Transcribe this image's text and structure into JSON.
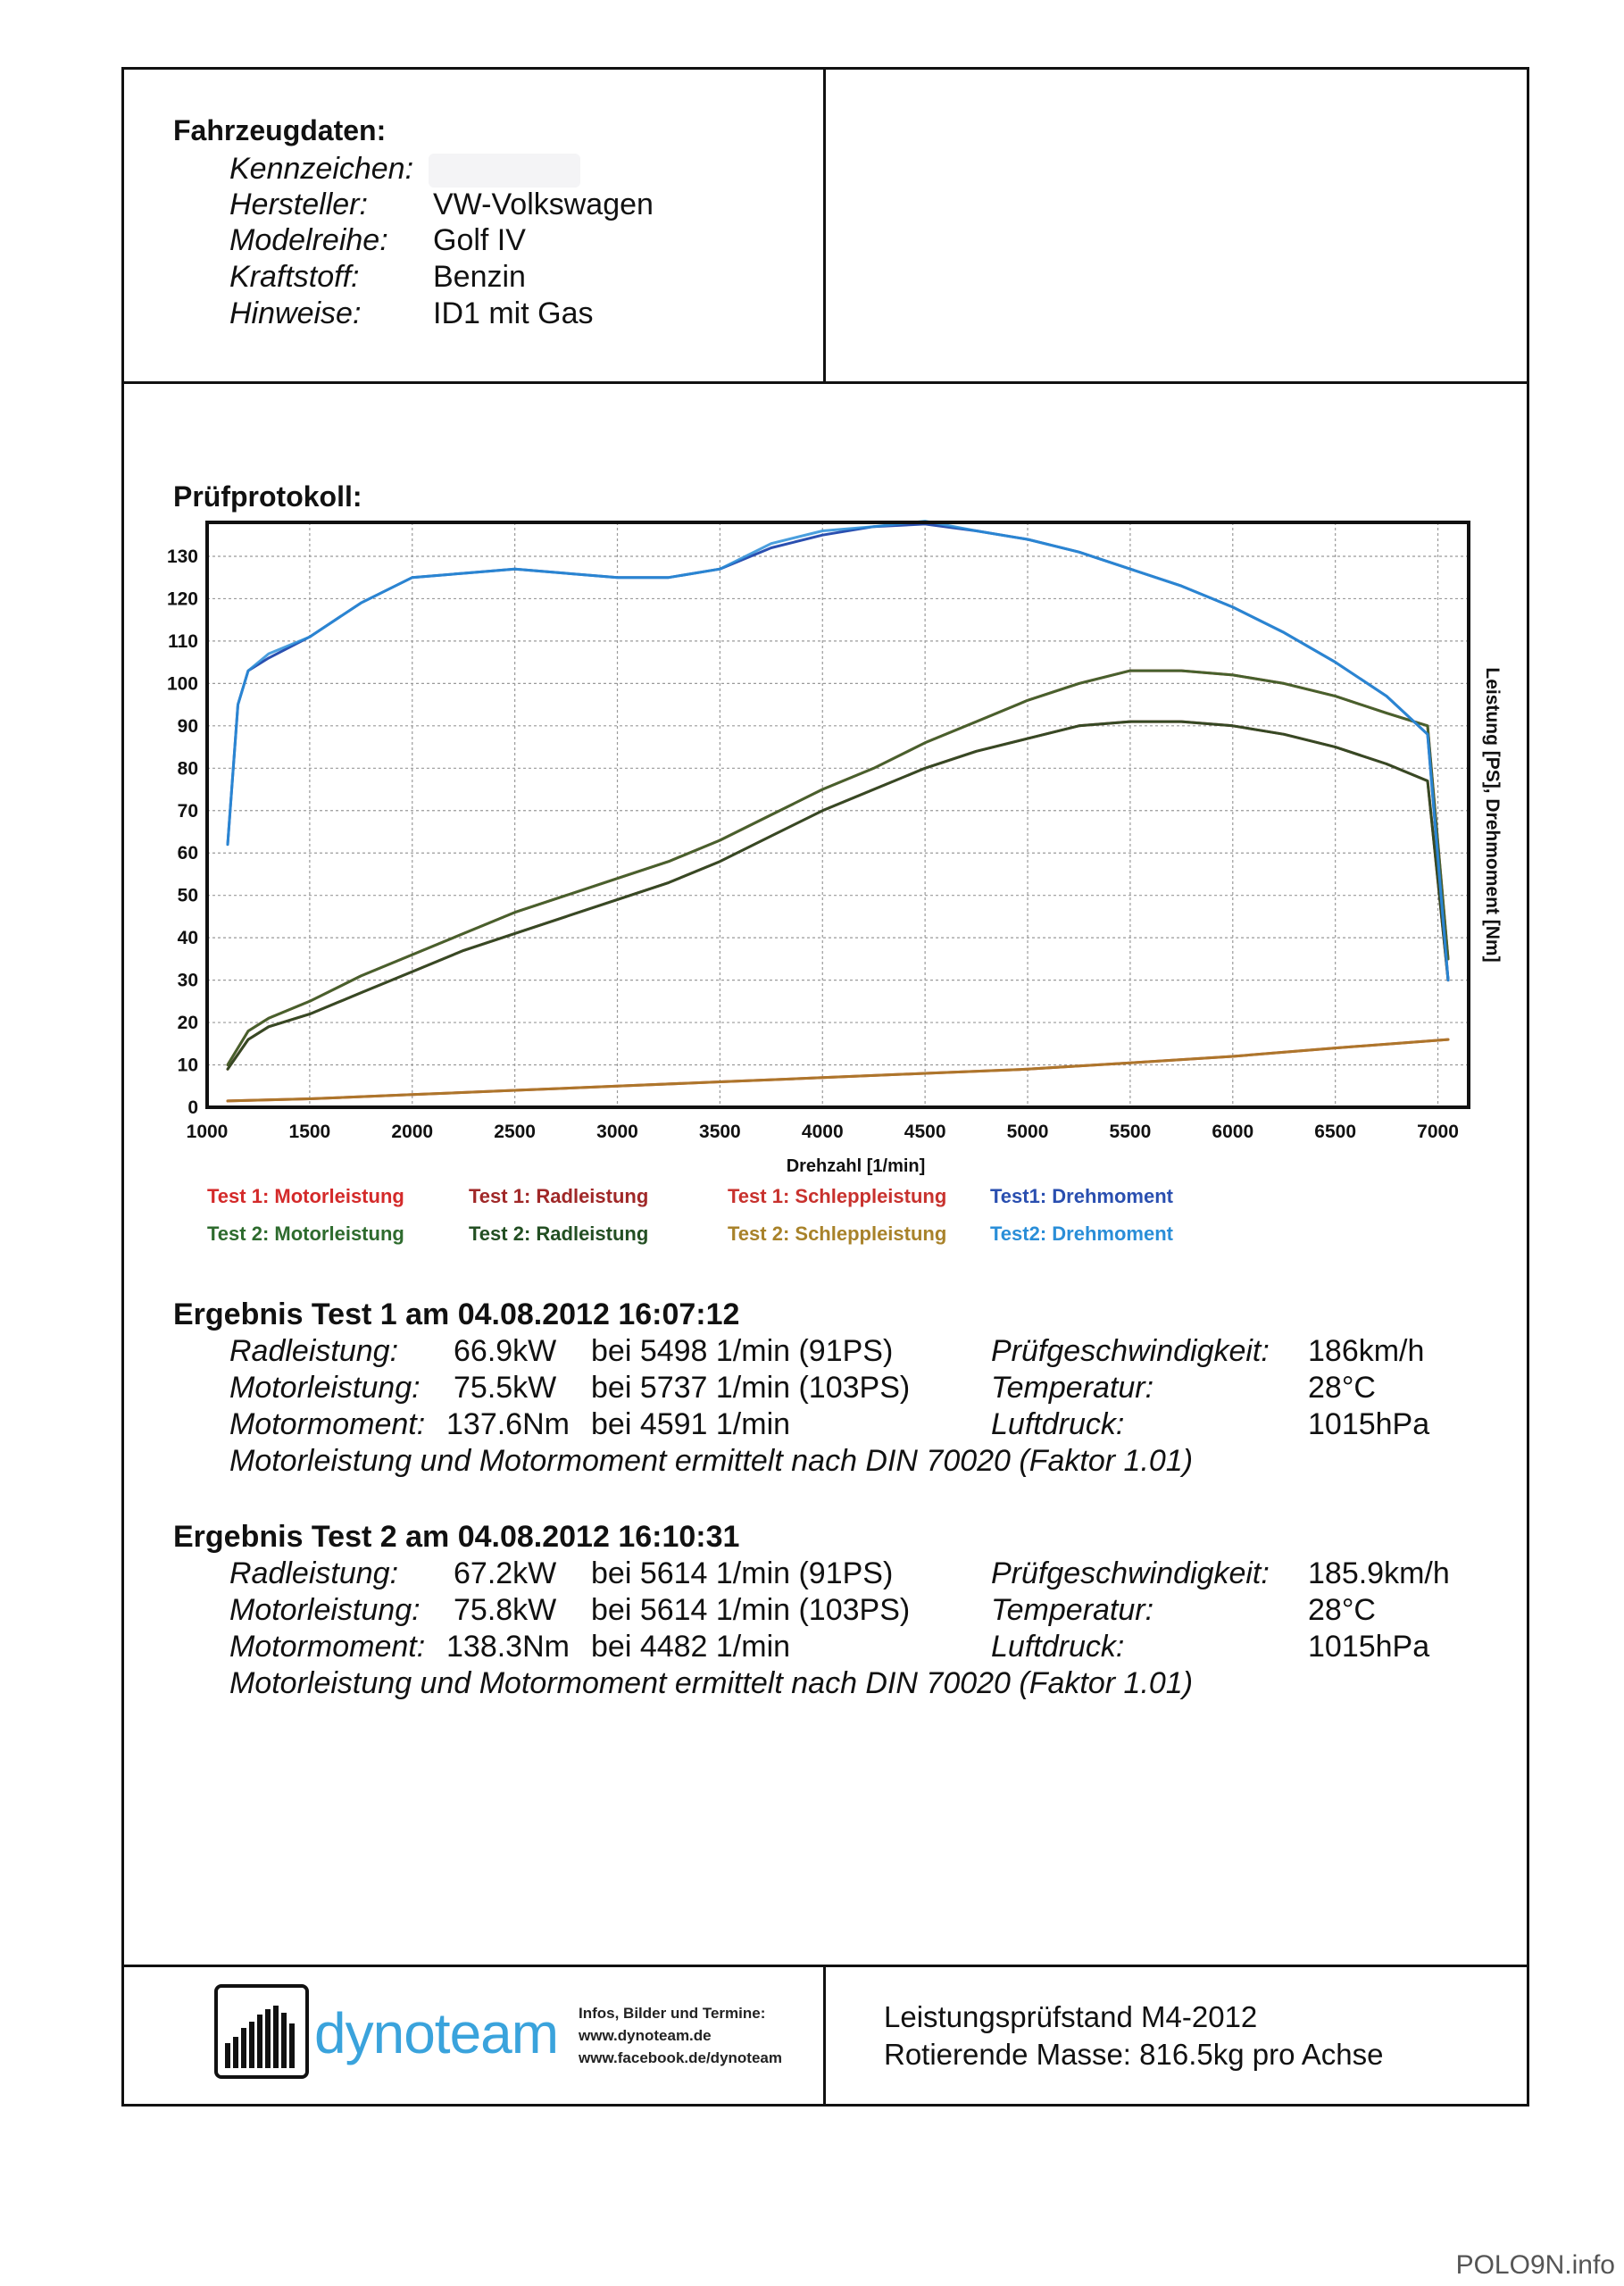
{
  "vehicle": {
    "heading": "Fahrzeugdaten:",
    "fields": [
      {
        "label": "Kennzeichen:",
        "value": ""
      },
      {
        "label": "Hersteller:",
        "value": "VW-Volkswagen"
      },
      {
        "label": "Modelreihe:",
        "value": "Golf IV"
      },
      {
        "label": "Kraftstoff:",
        "value": "Benzin"
      },
      {
        "label": "Hinweise:",
        "value": "ID1 mit Gas"
      }
    ]
  },
  "protocol_heading": "Prüfprotokoll:",
  "chart_data": {
    "type": "line",
    "xlabel": "Drehzahl [1/min]",
    "ylabel": "Leistung [PS], Drehmoment [Nm]",
    "xlim": [
      1000,
      7150
    ],
    "ylim": [
      0,
      138
    ],
    "xticks": [
      1000,
      1500,
      2000,
      2500,
      3000,
      3500,
      4000,
      4500,
      5000,
      5500,
      6000,
      6500,
      7000
    ],
    "yticks": [
      0,
      10,
      20,
      30,
      40,
      50,
      60,
      70,
      80,
      90,
      100,
      110,
      120,
      130
    ],
    "grid": true,
    "legend_position": "bottom",
    "series": [
      {
        "name": "Test 1: Motorleistung",
        "color": "#d42a2a",
        "x": [
          1100,
          1200,
          1300,
          1500,
          1750,
          2000,
          2250,
          2500,
          2750,
          3000,
          3250,
          3500,
          3750,
          4000,
          4250,
          4500,
          4750,
          5000,
          5250,
          5500,
          5750,
          6000,
          6250,
          6500,
          6750,
          6950,
          7050
        ],
        "y": [
          10,
          18,
          21,
          25,
          31,
          36,
          41,
          46,
          50,
          54,
          58,
          63,
          69,
          75,
          80,
          86,
          91,
          96,
          100,
          103,
          103,
          102,
          100,
          97,
          93,
          90,
          35
        ]
      },
      {
        "name": "Test 2: Motorleistung",
        "color": "#2e6b2e",
        "x": [
          1100,
          1200,
          1300,
          1500,
          1750,
          2000,
          2250,
          2500,
          2750,
          3000,
          3250,
          3500,
          3750,
          4000,
          4250,
          4500,
          4750,
          5000,
          5250,
          5500,
          5750,
          6000,
          6250,
          6500,
          6750,
          6950,
          7050
        ],
        "y": [
          10,
          18,
          21,
          25,
          31,
          36,
          41,
          46,
          50,
          54,
          58,
          63,
          69,
          75,
          80,
          86,
          91,
          96,
          100,
          103,
          103,
          102,
          100,
          97,
          93,
          90,
          35
        ]
      },
      {
        "name": "Test 1: Radleistung",
        "color": "#a02828",
        "x": [
          1100,
          1200,
          1300,
          1500,
          1750,
          2000,
          2250,
          2500,
          2750,
          3000,
          3250,
          3500,
          3750,
          4000,
          4250,
          4500,
          4750,
          5000,
          5250,
          5500,
          5750,
          6000,
          6250,
          6500,
          6750,
          6950,
          7050
        ],
        "y": [
          9,
          16,
          19,
          22,
          27,
          32,
          37,
          41,
          45,
          49,
          53,
          58,
          64,
          70,
          75,
          80,
          84,
          87,
          90,
          91,
          91,
          90,
          88,
          85,
          81,
          77,
          30
        ]
      },
      {
        "name": "Test 2: Radleistung",
        "color": "#234f23",
        "x": [
          1100,
          1200,
          1300,
          1500,
          1750,
          2000,
          2250,
          2500,
          2750,
          3000,
          3250,
          3500,
          3750,
          4000,
          4250,
          4500,
          4750,
          5000,
          5250,
          5500,
          5750,
          6000,
          6250,
          6500,
          6750,
          6950,
          7050
        ],
        "y": [
          9,
          16,
          19,
          22,
          27,
          32,
          37,
          41,
          45,
          49,
          53,
          58,
          64,
          70,
          75,
          80,
          84,
          87,
          90,
          91,
          91,
          90,
          88,
          85,
          81,
          77,
          30
        ]
      },
      {
        "name": "Test 1: Schleppleistung",
        "color": "#c8322e",
        "x": [
          1100,
          1500,
          2000,
          2500,
          3000,
          3500,
          4000,
          4500,
          5000,
          5500,
          6000,
          6500,
          7050
        ],
        "y": [
          1.5,
          2,
          3,
          4,
          5,
          6,
          7,
          8,
          9,
          10.5,
          12,
          14,
          16
        ]
      },
      {
        "name": "Test 2: Schleppleistung",
        "color": "#a8822a",
        "x": [
          1100,
          1500,
          2000,
          2500,
          3000,
          3500,
          4000,
          4500,
          5000,
          5500,
          6000,
          6500,
          7050
        ],
        "y": [
          1.5,
          2,
          3,
          4,
          5,
          6,
          7,
          8,
          9,
          10.5,
          12,
          14,
          16
        ]
      },
      {
        "name": "Test1: Drehmoment",
        "color": "#2a4fb0",
        "x": [
          1100,
          1150,
          1200,
          1300,
          1500,
          1750,
          2000,
          2250,
          2500,
          2750,
          3000,
          3250,
          3500,
          3750,
          4000,
          4250,
          4500,
          4750,
          5000,
          5250,
          5500,
          5750,
          6000,
          6250,
          6500,
          6750,
          6950,
          7050
        ],
        "y": [
          62,
          95,
          103,
          106,
          111,
          119,
          125,
          126,
          127,
          126,
          125,
          125,
          127,
          132,
          135,
          137,
          137.6,
          136,
          134,
          131,
          127,
          123,
          118,
          112,
          105,
          97,
          88,
          30
        ]
      },
      {
        "name": "Test2: Drehmoment",
        "color": "#2a8ed8",
        "x": [
          1100,
          1150,
          1200,
          1300,
          1500,
          1750,
          2000,
          2250,
          2500,
          2750,
          3000,
          3250,
          3500,
          3750,
          4000,
          4250,
          4500,
          4750,
          5000,
          5250,
          5500,
          5750,
          6000,
          6250,
          6500,
          6750,
          6950,
          7050
        ],
        "y": [
          62,
          95,
          103,
          107,
          111,
          119,
          125,
          126,
          127,
          126,
          125,
          125,
          127,
          133,
          136,
          137,
          138.3,
          136,
          134,
          131,
          127,
          123,
          118,
          112,
          105,
          97,
          88,
          30
        ]
      }
    ]
  },
  "results": [
    {
      "heading": "Ergebnis Test 1 am 04.08.2012 16:07:12",
      "rows": [
        {
          "label": "Radleistung:",
          "value": "66.9kW",
          "detail": "bei 5498 1/min (91PS)",
          "label2": "Prüfgeschwindigkeit:",
          "value2": "186km/h"
        },
        {
          "label": "Motorleistung:",
          "value": "75.5kW",
          "detail": "bei 5737 1/min (103PS)",
          "label2": "Temperatur:",
          "value2": "28°C"
        },
        {
          "label": "Motormoment:",
          "value": "137.6Nm",
          "detail": "bei 4591 1/min",
          "label2": "Luftdruck:",
          "value2": "1015hPa"
        }
      ],
      "note": "Motorleistung und Motormoment ermittelt nach DIN 70020 (Faktor 1.01)"
    },
    {
      "heading": "Ergebnis Test 2 am 04.08.2012 16:10:31",
      "rows": [
        {
          "label": "Radleistung:",
          "value": "67.2kW",
          "detail": "bei 5614 1/min (91PS)",
          "label2": "Prüfgeschwindigkeit:",
          "value2": "185.9km/h"
        },
        {
          "label": "Motorleistung:",
          "value": "75.8kW",
          "detail": "bei 5614 1/min (103PS)",
          "label2": "Temperatur:",
          "value2": "28°C"
        },
        {
          "label": "Motormoment:",
          "value": "138.3Nm",
          "detail": "bei 4482 1/min",
          "label2": "Luftdruck:",
          "value2": "1015hPa"
        }
      ],
      "note": "Motorleistung und Motormoment ermittelt nach DIN 70020 (Faktor 1.01)"
    }
  ],
  "footer": {
    "logo_text": "dynoteam",
    "info": [
      "Infos, Bilder und Termine:",
      "www.dynoteam.de",
      "www.facebook.de/dynoteam"
    ],
    "stand": "Leistungsprüfstand M4-2012",
    "mass": "Rotierende Masse: 816.5kg pro Achse"
  },
  "watermark": "POLO9N.info"
}
